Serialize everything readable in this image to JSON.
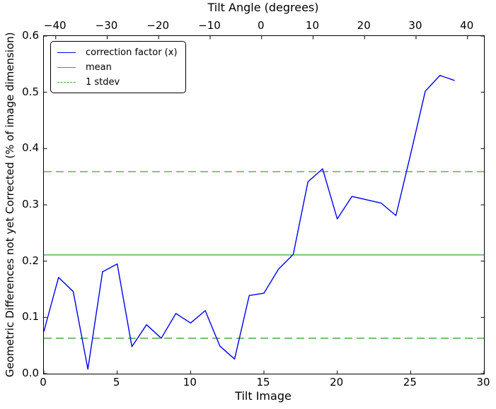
{
  "figure": {
    "background": "#ffffff",
    "frame_color": "#000000",
    "text_color": "#000000"
  },
  "legend": {
    "position": "upper left",
    "items": [
      {
        "label": "correction factor (x)",
        "style": "solid",
        "color": "#0000ee"
      },
      {
        "label": "mean",
        "style": "solid",
        "color": "#3aa23a"
      },
      {
        "label": "1 stdev",
        "style": "dashed",
        "color": "#3aa23a"
      }
    ]
  },
  "chart_data": {
    "type": "line",
    "title": "Tilt Angle (degrees)",
    "xlabel": "Tilt Image",
    "ylabel": "Geometric Differences not yet Corrected (% of image dimension)",
    "xlim": [
      0,
      30
    ],
    "ylim": [
      0.0,
      0.6
    ],
    "x_ticks": [
      0,
      5,
      10,
      15,
      20,
      25,
      30
    ],
    "y_ticks": [
      0.0,
      0.1,
      0.2,
      0.3,
      0.4,
      0.5,
      0.6
    ],
    "top_axis": {
      "label": "Tilt Angle (degrees)",
      "range": [
        -42.3,
        43.2
      ],
      "ticks": [
        -40,
        -30,
        -20,
        -10,
        0,
        10,
        20,
        30,
        40
      ]
    },
    "grid": false,
    "legend_position": "upper left",
    "series": [
      {
        "name": "correction factor (x)",
        "color": "#0000ee",
        "style": "solid",
        "x": [
          0,
          1,
          2,
          3,
          4,
          5,
          6,
          7,
          8,
          9,
          10,
          11,
          12,
          13,
          14,
          15,
          16,
          17,
          18,
          19,
          20,
          21,
          22,
          23,
          24,
          25,
          26,
          27,
          28
        ],
        "y": [
          0.075,
          0.171,
          0.146,
          0.008,
          0.181,
          0.195,
          0.048,
          0.087,
          0.063,
          0.107,
          0.09,
          0.112,
          0.049,
          0.026,
          0.139,
          0.143,
          0.186,
          0.212,
          0.341,
          0.364,
          0.275,
          0.315,
          0.309,
          0.303,
          0.281,
          0.39,
          0.502,
          0.53,
          0.521
        ]
      },
      {
        "name": "mean",
        "color": "#3aa23a",
        "style": "solid",
        "hline": 0.211
      },
      {
        "name": "1 stdev",
        "color": "#3aa23a",
        "style": "dashed",
        "hlines": [
          0.359,
          0.063
        ]
      }
    ]
  }
}
